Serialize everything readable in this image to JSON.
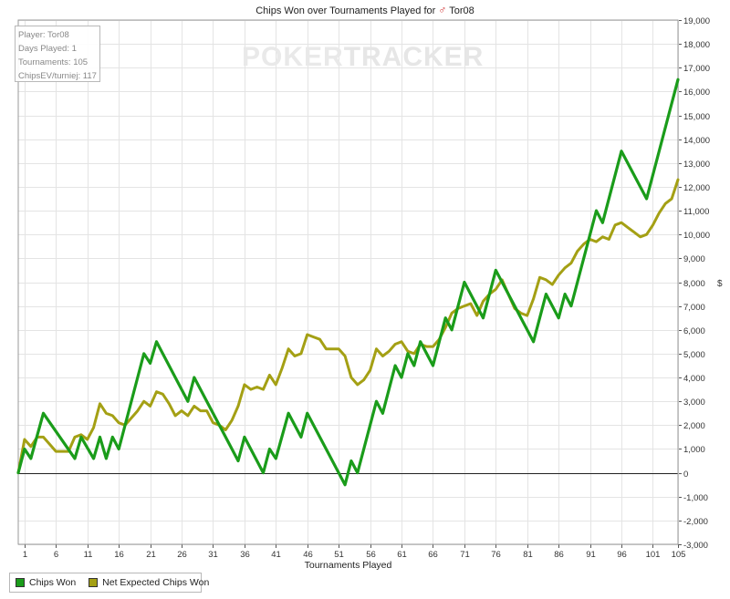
{
  "title": {
    "text": "Chips Won over Tournaments Played for",
    "player_symbol": "♂",
    "player": "Tor08"
  },
  "info_box": {
    "lines": [
      "Player: Tor08",
      "Days Played: 1",
      "Tournaments: 105",
      "ChipsEV/turniej: 117"
    ]
  },
  "watermark": {
    "part1": "POKER",
    "part2": "TRACKER"
  },
  "legend": {
    "items": [
      {
        "label": "Chips Won",
        "color": "#1a9c1a"
      },
      {
        "label": "Net Expected Chips Won",
        "color": "#a4a014"
      }
    ]
  },
  "chart_data": {
    "type": "line",
    "title": "Chips Won over Tournaments Played for ♂ Tor08",
    "xlabel": "Tournaments Played",
    "ylabel": "$",
    "xlim": [
      0,
      105
    ],
    "ylim": [
      -3000,
      19000
    ],
    "x_ticks": [
      1,
      6,
      11,
      16,
      21,
      26,
      31,
      36,
      41,
      46,
      51,
      56,
      61,
      66,
      71,
      76,
      81,
      86,
      91,
      96,
      101,
      105
    ],
    "y_ticks": [
      -3000,
      -2000,
      -1000,
      0,
      1000,
      2000,
      3000,
      4000,
      5000,
      6000,
      7000,
      8000,
      9000,
      10000,
      11000,
      12000,
      13000,
      14000,
      15000,
      16000,
      17000,
      18000,
      19000
    ],
    "y_tick_labels": [
      "-3,000",
      "-2,000",
      "-1,000",
      "0",
      "1,000",
      "2,000",
      "3,000",
      "4,000",
      "5,000",
      "6,000",
      "7,000",
      "8,000",
      "9,000",
      "10,000",
      "11,000",
      "12,000",
      "13,000",
      "14,000",
      "15,000",
      "16,000",
      "17,000",
      "18,000",
      "19,000"
    ],
    "grid": true,
    "legend_position": "bottom-left",
    "series": [
      {
        "name": "Chips Won",
        "color": "#1a9c1a",
        "points": [
          [
            0,
            0
          ],
          [
            1,
            1000
          ],
          [
            2,
            600
          ],
          [
            4,
            2500
          ],
          [
            9,
            600
          ],
          [
            10,
            1500
          ],
          [
            12,
            600
          ],
          [
            13,
            1500
          ],
          [
            14,
            600
          ],
          [
            15,
            1500
          ],
          [
            16,
            1000
          ],
          [
            20,
            5000
          ],
          [
            21,
            4600
          ],
          [
            22,
            5500
          ],
          [
            27,
            3000
          ],
          [
            28,
            4000
          ],
          [
            35,
            500
          ],
          [
            36,
            1500
          ],
          [
            39,
            0
          ],
          [
            40,
            1000
          ],
          [
            41,
            600
          ],
          [
            43,
            2500
          ],
          [
            45,
            1500
          ],
          [
            46,
            2500
          ],
          [
            52,
            -500
          ],
          [
            53,
            500
          ],
          [
            54,
            0
          ],
          [
            57,
            3000
          ],
          [
            58,
            2500
          ],
          [
            60,
            4500
          ],
          [
            61,
            4000
          ],
          [
            62,
            5000
          ],
          [
            63,
            4500
          ],
          [
            64,
            5500
          ],
          [
            66,
            4500
          ],
          [
            68,
            6500
          ],
          [
            69,
            6000
          ],
          [
            71,
            8000
          ],
          [
            74,
            6500
          ],
          [
            76,
            8500
          ],
          [
            82,
            5500
          ],
          [
            84,
            7500
          ],
          [
            86,
            6500
          ],
          [
            87,
            7500
          ],
          [
            88,
            7000
          ],
          [
            92,
            11000
          ],
          [
            93,
            10500
          ],
          [
            96,
            13500
          ],
          [
            100,
            11500
          ],
          [
            105,
            16500
          ]
        ]
      },
      {
        "name": "Net Expected Chips Won",
        "color": "#a4a014",
        "points": [
          [
            0,
            0
          ],
          [
            1,
            1400
          ],
          [
            2,
            1100
          ],
          [
            3,
            1500
          ],
          [
            4,
            1500
          ],
          [
            5,
            1200
          ],
          [
            6,
            900
          ],
          [
            8,
            900
          ],
          [
            9,
            1500
          ],
          [
            10,
            1600
          ],
          [
            11,
            1400
          ],
          [
            12,
            1900
          ],
          [
            13,
            2900
          ],
          [
            14,
            2500
          ],
          [
            15,
            2400
          ],
          [
            16,
            2100
          ],
          [
            17,
            2000
          ],
          [
            18,
            2300
          ],
          [
            19,
            2600
          ],
          [
            20,
            3000
          ],
          [
            21,
            2800
          ],
          [
            22,
            3400
          ],
          [
            23,
            3300
          ],
          [
            24,
            2900
          ],
          [
            25,
            2400
          ],
          [
            26,
            2600
          ],
          [
            27,
            2400
          ],
          [
            28,
            2800
          ],
          [
            29,
            2600
          ],
          [
            30,
            2600
          ],
          [
            31,
            2100
          ],
          [
            32,
            2000
          ],
          [
            33,
            1800
          ],
          [
            34,
            2200
          ],
          [
            35,
            2800
          ],
          [
            36,
            3700
          ],
          [
            37,
            3500
          ],
          [
            38,
            3600
          ],
          [
            39,
            3500
          ],
          [
            40,
            4100
          ],
          [
            41,
            3700
          ],
          [
            42,
            4400
          ],
          [
            43,
            5200
          ],
          [
            44,
            4900
          ],
          [
            45,
            5000
          ],
          [
            46,
            5800
          ],
          [
            47,
            5700
          ],
          [
            48,
            5600
          ],
          [
            49,
            5200
          ],
          [
            51,
            5200
          ],
          [
            52,
            4900
          ],
          [
            53,
            4000
          ],
          [
            54,
            3700
          ],
          [
            55,
            3900
          ],
          [
            56,
            4300
          ],
          [
            57,
            5200
          ],
          [
            58,
            4900
          ],
          [
            59,
            5100
          ],
          [
            60,
            5400
          ],
          [
            61,
            5500
          ],
          [
            62,
            5100
          ],
          [
            63,
            5000
          ],
          [
            64,
            5400
          ],
          [
            65,
            5300
          ],
          [
            66,
            5300
          ],
          [
            67,
            5600
          ],
          [
            68,
            6100
          ],
          [
            69,
            6700
          ],
          [
            70,
            6900
          ],
          [
            71,
            7000
          ],
          [
            72,
            7100
          ],
          [
            73,
            6600
          ],
          [
            74,
            7200
          ],
          [
            75,
            7500
          ],
          [
            76,
            7700
          ],
          [
            77,
            8100
          ],
          [
            78,
            7500
          ],
          [
            79,
            6900
          ],
          [
            80,
            6700
          ],
          [
            81,
            6600
          ],
          [
            82,
            7300
          ],
          [
            83,
            8200
          ],
          [
            84,
            8100
          ],
          [
            85,
            7900
          ],
          [
            86,
            8300
          ],
          [
            87,
            8600
          ],
          [
            88,
            8800
          ],
          [
            89,
            9300
          ],
          [
            90,
            9600
          ],
          [
            91,
            9800
          ],
          [
            92,
            9700
          ],
          [
            93,
            9900
          ],
          [
            94,
            9800
          ],
          [
            95,
            10400
          ],
          [
            96,
            10500
          ],
          [
            97,
            10300
          ],
          [
            98,
            10100
          ],
          [
            99,
            9900
          ],
          [
            100,
            10000
          ],
          [
            101,
            10400
          ],
          [
            102,
            10900
          ],
          [
            103,
            11300
          ],
          [
            104,
            11500
          ],
          [
            105,
            12300
          ]
        ]
      }
    ]
  }
}
